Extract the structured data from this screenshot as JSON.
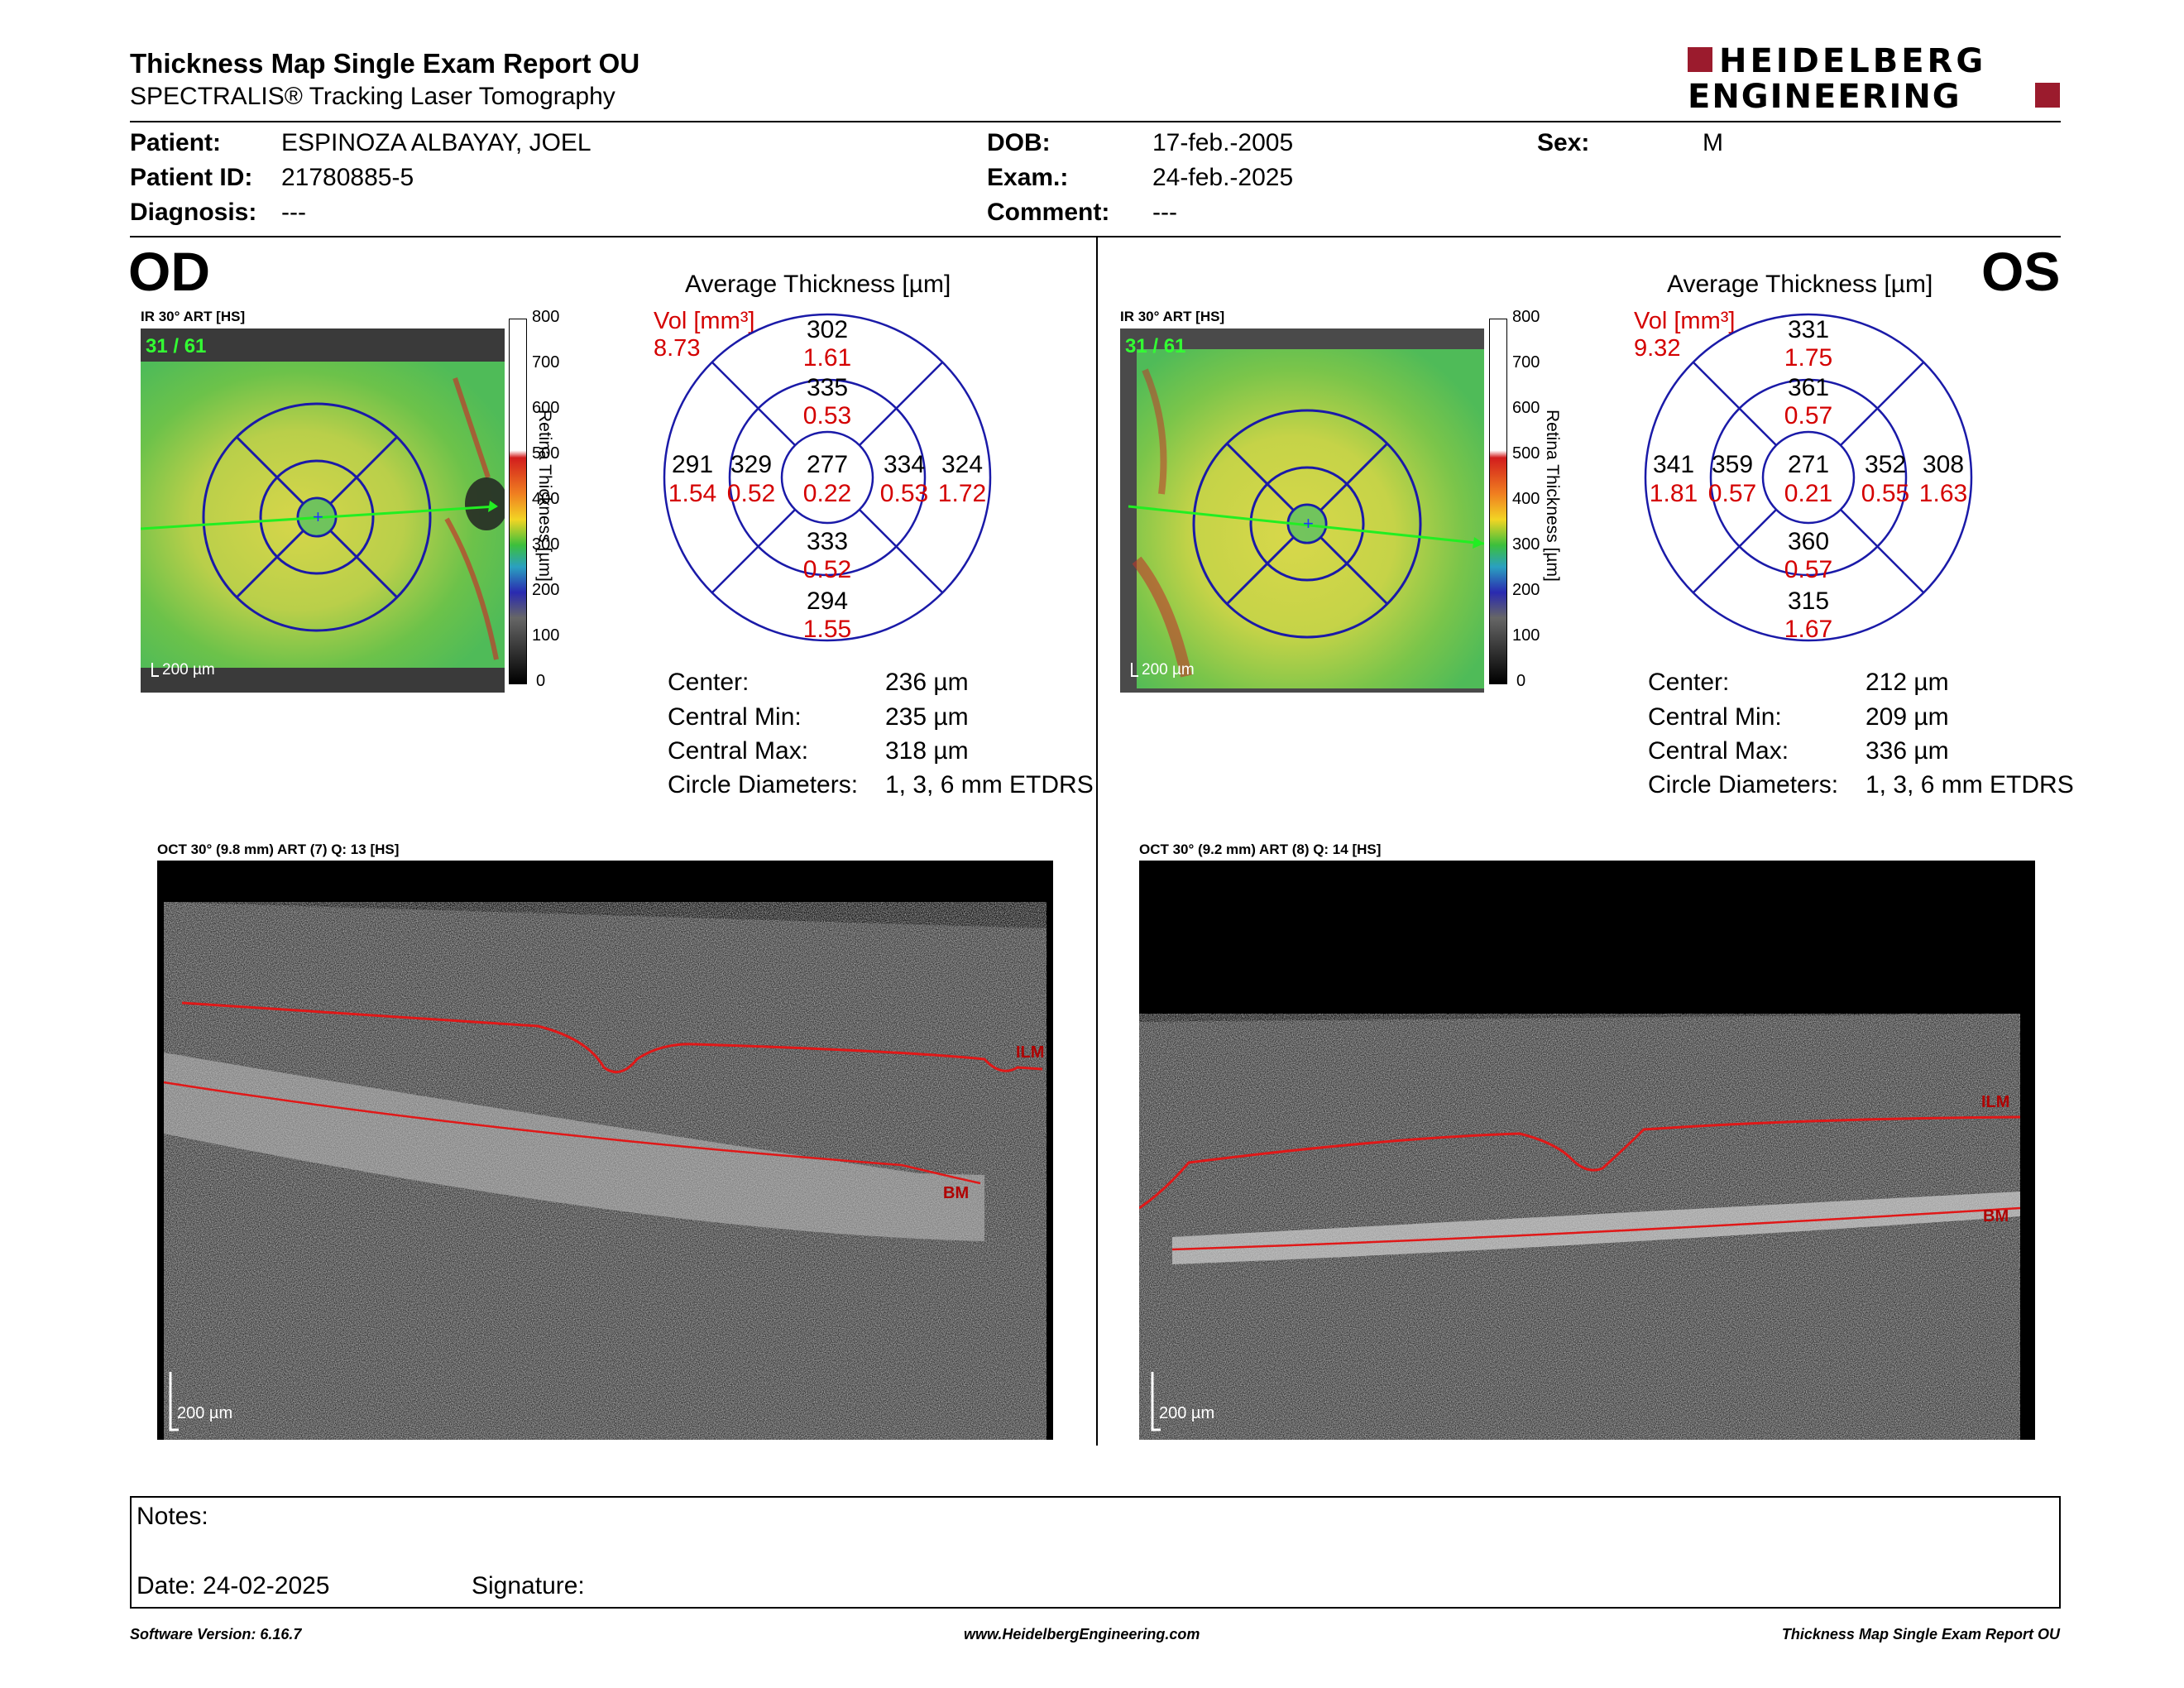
{
  "header": {
    "title": "Thickness Map Single Exam Report OU",
    "subtitle": "SPECTRALIS® Tracking Laser Tomography",
    "logo_line1": "HEIDELBERG",
    "logo_line2": "ENGINEERING",
    "brand_color": "#9b1b2d"
  },
  "patient": {
    "patient_label": "Patient:",
    "patient_value": "ESPINOZA ALBAYAY, JOEL",
    "id_label": "Patient ID:",
    "id_value": "21780885-5",
    "diagnosis_label": "Diagnosis:",
    "diagnosis_value": "---",
    "dob_label": "DOB:",
    "dob_value": "17-feb.-2005",
    "exam_label": "Exam.:",
    "exam_value": "24-feb.-2025",
    "comment_label": "Comment:",
    "comment_value": "---",
    "sex_label": "Sex:",
    "sex_value": "M"
  },
  "od": {
    "eye": "OD",
    "ir_caption": "IR 30° ART [HS]",
    "frame_counter": "31 / 61",
    "scale": "200 µm",
    "avg_title": "Average Thickness [µm]",
    "vol_label": "Vol [mm³]",
    "vol_total": "8.73",
    "sectors": {
      "outer_sup": {
        "thk": "302",
        "vol": "1.61"
      },
      "inner_sup": {
        "thk": "335",
        "vol": "0.53"
      },
      "outer_temp": {
        "thk": "291",
        "vol": "1.54"
      },
      "inner_temp": {
        "thk": "329",
        "vol": "0.52"
      },
      "center": {
        "thk": "277",
        "vol": "0.22"
      },
      "inner_nasal": {
        "thk": "334",
        "vol": "0.53"
      },
      "outer_nasal": {
        "thk": "324",
        "vol": "1.72"
      },
      "inner_inf": {
        "thk": "333",
        "vol": "0.52"
      },
      "outer_inf": {
        "thk": "294",
        "vol": "1.55"
      }
    },
    "stats": [
      {
        "label": "Center:",
        "value": "236 µm"
      },
      {
        "label": "Central Min:",
        "value": "235 µm"
      },
      {
        "label": "Central Max:",
        "value": "318 µm"
      },
      {
        "label": "Circle Diameters:",
        "value": "1, 3, 6 mm ETDRS"
      }
    ],
    "oct_caption": "OCT 30° (9.8 mm) ART (7) Q: 13 [HS]",
    "oct_scale": "200 µm",
    "layer_ilm": "ILM",
    "layer_bm": "BM"
  },
  "os": {
    "eye": "OS",
    "ir_caption": "IR 30° ART [HS]",
    "frame_counter": "31 / 61",
    "scale": "200 µm",
    "avg_title": "Average Thickness [µm]",
    "vol_label": "Vol [mm³]",
    "vol_total": "9.32",
    "sectors": {
      "outer_sup": {
        "thk": "331",
        "vol": "1.75"
      },
      "inner_sup": {
        "thk": "361",
        "vol": "0.57"
      },
      "outer_temp": {
        "thk": "341",
        "vol": "1.81"
      },
      "inner_temp": {
        "thk": "359",
        "vol": "0.57"
      },
      "center": {
        "thk": "271",
        "vol": "0.21"
      },
      "inner_nasal": {
        "thk": "352",
        "vol": "0.55"
      },
      "outer_nasal": {
        "thk": "308",
        "vol": "1.63"
      },
      "inner_inf": {
        "thk": "360",
        "vol": "0.57"
      },
      "outer_inf": {
        "thk": "315",
        "vol": "1.67"
      }
    },
    "stats": [
      {
        "label": "Center:",
        "value": "212 µm"
      },
      {
        "label": "Central Min:",
        "value": "209 µm"
      },
      {
        "label": "Central Max:",
        "value": "336 µm"
      },
      {
        "label": "Circle Diameters:",
        "value": "1, 3, 6 mm ETDRS"
      }
    ],
    "oct_caption": "OCT 30° (9.2 mm) ART (8) Q: 14 [HS]",
    "oct_scale": "200 µm",
    "layer_ilm": "ILM",
    "layer_bm": "BM"
  },
  "colorbar": {
    "ticks": [
      "800",
      "700",
      "600",
      "500",
      "400",
      "300",
      "200",
      "100",
      "0"
    ],
    "label_words": [
      "Retina",
      "Thickness",
      "[µm]"
    ]
  },
  "notes": {
    "notes_label": "Notes:",
    "date_label": "Date: 24-02-2025",
    "signature_label": "Signature:"
  },
  "footer": {
    "software": "Software Version: 6.16.7",
    "url": "www.HeidelbergEngineering.com",
    "report": "Thickness Map Single Exam Report OU"
  }
}
